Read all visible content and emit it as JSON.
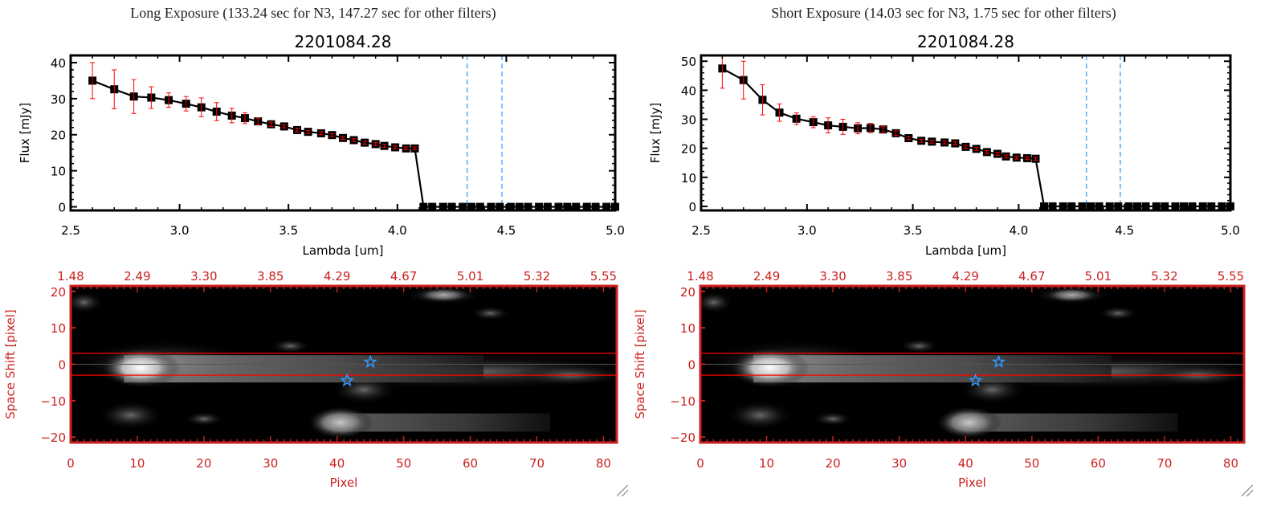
{
  "panels": [
    {
      "heading": "Long Exposure (133.24 sec for N3, 147.27 sec for other filters)",
      "object_id": "2201084.28",
      "spectrum": {
        "type": "line",
        "xlabel": "Lambda [um]",
        "ylabel": "Flux [mJy]",
        "xlim": [
          2.5,
          5.0
        ],
        "ylim": [
          -1,
          42
        ],
        "xticks": [
          "2.5",
          "3.0",
          "3.5",
          "4.0",
          "4.5",
          "5.0"
        ],
        "xtick_values": [
          2.5,
          3.0,
          3.5,
          4.0,
          4.5,
          5.0
        ],
        "yticks": [
          "0",
          "10",
          "20",
          "30",
          "40"
        ],
        "ytick_values": [
          0,
          10,
          20,
          30,
          40
        ],
        "x": [
          2.6,
          2.7,
          2.79,
          2.87,
          2.95,
          3.03,
          3.1,
          3.17,
          3.24,
          3.3,
          3.36,
          3.42,
          3.48,
          3.54,
          3.59,
          3.65,
          3.7,
          3.75,
          3.8,
          3.85,
          3.9,
          3.94,
          3.99,
          4.04,
          4.08,
          4.12,
          4.16,
          4.21,
          4.25,
          4.3,
          4.34,
          4.38,
          4.43,
          4.47,
          4.52,
          4.56,
          4.6,
          4.65,
          4.69,
          4.74,
          4.78,
          4.82,
          4.87,
          4.91,
          4.96,
          5.0
        ],
        "y": [
          35.0,
          32.6,
          30.6,
          30.3,
          29.6,
          28.6,
          27.6,
          26.4,
          25.3,
          24.6,
          23.7,
          22.9,
          22.3,
          21.3,
          20.8,
          20.4,
          19.9,
          19.1,
          18.5,
          17.8,
          17.4,
          16.9,
          16.5,
          16.2,
          16.2,
          0,
          0,
          0,
          0,
          0,
          0,
          0,
          0,
          0,
          0,
          0,
          0,
          0,
          0,
          0,
          0,
          0,
          0,
          0,
          0,
          0
        ],
        "yerr": [
          5.0,
          5.4,
          4.7,
          3.0,
          2.0,
          2.0,
          2.6,
          2.5,
          2.0,
          1.5,
          0.9,
          0.6,
          0.4,
          0.5,
          0.4,
          0.4,
          0.4,
          0.4,
          0.4,
          0.4,
          0.4,
          0.4,
          0.4,
          0.4,
          0.4,
          0,
          0,
          0,
          0,
          0,
          0,
          0,
          0,
          0,
          0,
          0,
          0,
          0,
          0,
          0,
          0,
          0,
          0,
          0,
          0,
          0
        ],
        "vlines": [
          4.32,
          4.48
        ],
        "colors": {
          "line": "#000000",
          "marker_fill": "#cc0000",
          "errorbar": "#ff0000",
          "vline": "#3399ff",
          "zero_line": "#ff0000"
        }
      },
      "image": {
        "xlabel": "Pixel",
        "ylabel": "Space Shift [pixel]",
        "xlim": [
          0,
          82
        ],
        "ylim": [
          -21.5,
          21.5
        ],
        "xticks": [
          "0",
          "10",
          "20",
          "30",
          "40",
          "50",
          "60",
          "70",
          "80"
        ],
        "xtick_values": [
          0,
          10,
          20,
          30,
          40,
          50,
          60,
          70,
          80
        ],
        "top_ticks": [
          "1.48",
          "2.49",
          "3.30",
          "3.85",
          "4.29",
          "4.67",
          "5.01",
          "5.32",
          "5.55"
        ],
        "yticks": [
          "20",
          "10",
          "0",
          "−10",
          "−20"
        ],
        "ytick_values": [
          20,
          10,
          0,
          -10,
          -20
        ],
        "aperture_lines": [
          3,
          -3
        ],
        "center_line": 0,
        "stars": [
          {
            "x": 45,
            "y": 0.6
          },
          {
            "x": 41.5,
            "y": -4.5
          }
        ],
        "colors": {
          "axis": "#cc1f1f",
          "aperture": "#ff0000",
          "star": "#3399ff"
        }
      }
    },
    {
      "heading": "Short Exposure (14.03 sec for N3, 1.75 sec for other filters)",
      "object_id": "2201084.28",
      "spectrum": {
        "type": "line",
        "xlabel": "Lambda [um]",
        "ylabel": "Flux [mJy]",
        "xlim": [
          2.5,
          5.0
        ],
        "ylim": [
          -1.4,
          52
        ],
        "xticks": [
          "2.5",
          "3.0",
          "3.5",
          "4.0",
          "4.5",
          "5.0"
        ],
        "xtick_values": [
          2.5,
          3.0,
          3.5,
          4.0,
          4.5,
          5.0
        ],
        "yticks": [
          "0",
          "10",
          "20",
          "30",
          "40",
          "50"
        ],
        "ytick_values": [
          0,
          10,
          20,
          30,
          40,
          50
        ],
        "x": [
          2.6,
          2.7,
          2.79,
          2.87,
          2.95,
          3.03,
          3.1,
          3.17,
          3.24,
          3.3,
          3.36,
          3.42,
          3.48,
          3.54,
          3.59,
          3.65,
          3.7,
          3.75,
          3.8,
          3.85,
          3.9,
          3.94,
          3.99,
          4.04,
          4.08,
          4.12,
          4.16,
          4.21,
          4.25,
          4.3,
          4.34,
          4.38,
          4.43,
          4.47,
          4.52,
          4.56,
          4.6,
          4.65,
          4.69,
          4.74,
          4.78,
          4.82,
          4.87,
          4.91,
          4.96,
          5.0
        ],
        "y": [
          47.5,
          43.5,
          36.7,
          32.3,
          30.2,
          29.0,
          27.9,
          27.4,
          26.9,
          27.0,
          26.5,
          25.2,
          23.5,
          22.6,
          22.3,
          22.0,
          21.7,
          20.5,
          19.8,
          18.7,
          18.1,
          17.2,
          16.8,
          16.6,
          16.4,
          0,
          0,
          0,
          0,
          0,
          0,
          0,
          0,
          0,
          0,
          0,
          0,
          0,
          0,
          0,
          0,
          0,
          0,
          0,
          0,
          0
        ],
        "yerr": [
          6.8,
          6.5,
          5.2,
          3.0,
          2.0,
          1.9,
          2.6,
          2.6,
          1.9,
          1.6,
          1.0,
          0.8,
          0.5,
          0.5,
          0.5,
          0.5,
          0.5,
          0.5,
          0.5,
          0.5,
          0.5,
          0.5,
          0.5,
          0.5,
          0.5,
          0,
          0,
          0,
          0,
          0,
          0,
          0,
          0,
          0,
          0,
          0,
          0,
          0,
          0,
          0,
          0,
          0,
          0,
          0,
          0,
          0
        ],
        "vlines": [
          4.32,
          4.48
        ],
        "colors": {
          "line": "#000000",
          "marker_fill": "#cc0000",
          "errorbar": "#ff0000",
          "vline": "#3399ff",
          "zero_line": "#ff0000"
        }
      },
      "image": {
        "xlabel": "Pixel",
        "ylabel": "Space Shift [pixel]",
        "xlim": [
          0,
          82
        ],
        "ylim": [
          -21.5,
          21.5
        ],
        "xticks": [
          "0",
          "10",
          "20",
          "30",
          "40",
          "50",
          "60",
          "70",
          "80"
        ],
        "xtick_values": [
          0,
          10,
          20,
          30,
          40,
          50,
          60,
          70,
          80
        ],
        "top_ticks": [
          "1.48",
          "2.49",
          "3.30",
          "3.85",
          "4.29",
          "4.67",
          "5.01",
          "5.32",
          "5.55"
        ],
        "yticks": [
          "20",
          "10",
          "0",
          "−10",
          "−20"
        ],
        "ytick_values": [
          20,
          10,
          0,
          -10,
          -20
        ],
        "aperture_lines": [
          3,
          -3
        ],
        "center_line": 0,
        "stars": [
          {
            "x": 45,
            "y": 0.6
          },
          {
            "x": 41.5,
            "y": -4.5
          }
        ],
        "colors": {
          "axis": "#cc1f1f",
          "aperture": "#ff0000",
          "star": "#3399ff"
        }
      }
    }
  ],
  "chart_data": [
    {
      "type": "line",
      "title": "2201084.28",
      "ref": "panels.0.spectrum"
    },
    {
      "type": "line",
      "title": "2201084.28",
      "ref": "panels.1.spectrum"
    }
  ]
}
